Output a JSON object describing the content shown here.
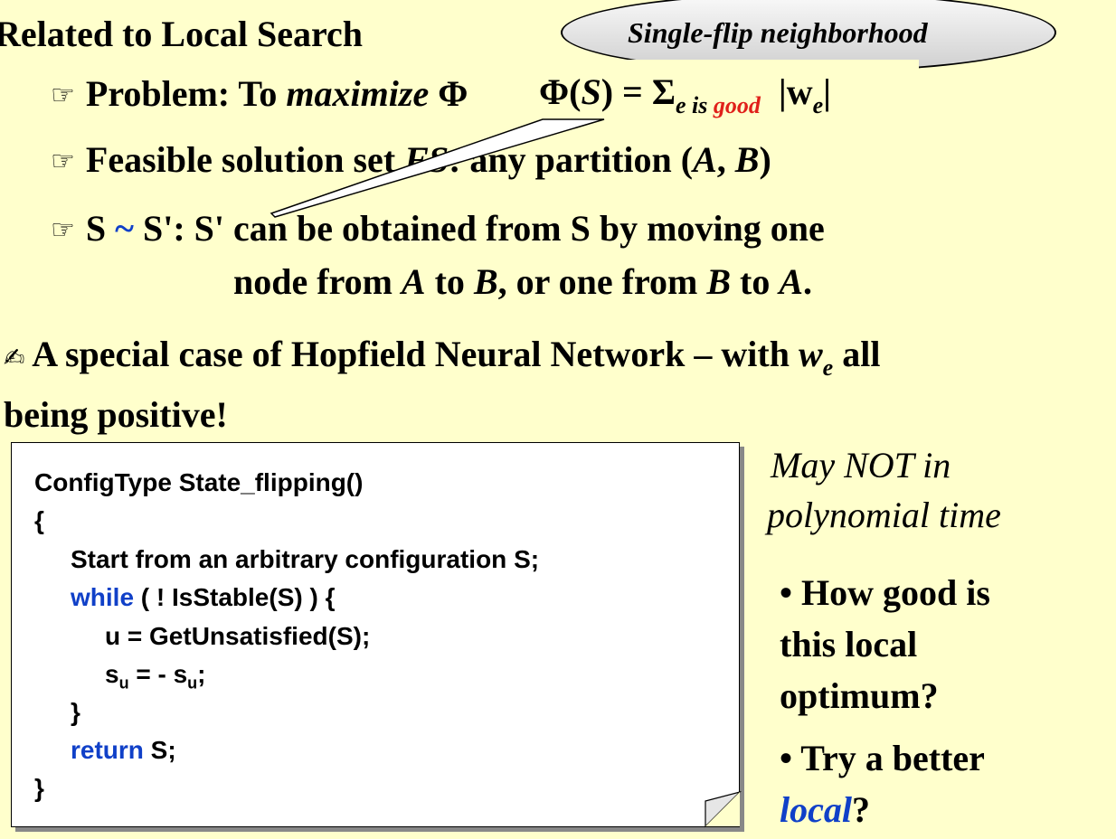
{
  "title": "Related to Local Search",
  "callout": {
    "text": "Single-flip neighborhood"
  },
  "bullets": {
    "problem": {
      "label": "Problem:  To ",
      "emph": "maximize",
      "hidden_tail": " Φ"
    },
    "phi": {
      "lhs": "Φ(",
      "S": "S",
      "rhs": ") = Σ",
      "sub_e": "e is ",
      "sub_good": "good",
      "abs": "|w",
      "abs_sub": "e",
      "abs_end": "|"
    },
    "feasible": {
      "label": "Feasible solution set ",
      "fs": "FS",
      "rest": ": any partition (",
      "A": "A",
      "comma": ", ",
      "B": "B",
      "close": ")"
    },
    "neighbor": {
      "s": "S ",
      "tilde": "~",
      "line1_rest": " S': S' can be obtained from S by moving one",
      "line2_a": "node from ",
      "A": "A",
      "line2_b": " to ",
      "B": "B",
      "line2_c": ", or one from ",
      "B2": "B",
      "line2_d": " to ",
      "A2": "A",
      "line2_e": "."
    }
  },
  "special_case": {
    "line1": "A special case of Hopfield Neural Network – with ",
    "w": "w",
    "w_sub": "e",
    "line1_end": " all",
    "line2": "being positive!"
  },
  "code": {
    "l1": "ConfigType State_flipping()",
    "l2": "{",
    "l3": "Start from an arbitrary configuration S;",
    "l4_kw": "while",
    "l4_rest": " ( ! IsStable(S) ) {",
    "l5": "u = GetUnsatisfied(S);",
    "l6_s": "s",
    "l6_sub": "u",
    "l6_mid": " = - s",
    "l6_sub2": "u",
    "l6_end": ";",
    "l7": "}",
    "l8_kw": "return",
    "l8_rest": " S;",
    "l9": "}"
  },
  "notes": {
    "may1": "May NOT in",
    "may2": "polynomial time",
    "q1a": "• How good is",
    "q1b": "this local",
    "q1c": "optimum?",
    "q2a": "• Try a better",
    "q2b_local": "local",
    "q2b_q": "?"
  },
  "colors": {
    "background": "#FFFFCC",
    "red": "#E0201A",
    "blue": "#1040C8"
  }
}
